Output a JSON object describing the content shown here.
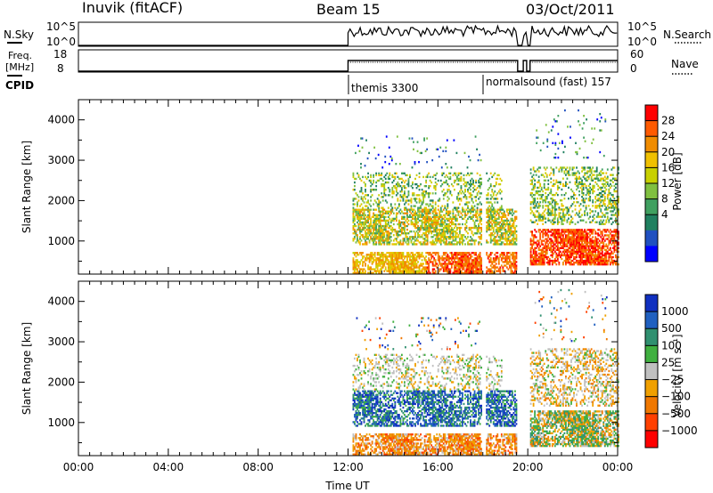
{
  "header": {
    "station": "Inuvik (fitACF)",
    "beam": "Beam 15",
    "date": "03/Oct/2011"
  },
  "strip_panels": {
    "nsky_label": "N.Sky",
    "nsky_ticks": [
      "10^5",
      "10^0"
    ],
    "nsearch_label": "N.Search",
    "nsearch_ticks": [
      "10^5",
      "10^0"
    ],
    "freq_label_line1": "Freq.",
    "freq_label_line2": "[MHz]",
    "freq_ticks": [
      "18",
      "8"
    ],
    "nave_label": "Nave",
    "nave_ticks": [
      "60",
      "0"
    ],
    "cpid_label": "CPID",
    "cpid_modes": [
      {
        "start_hour": 12.0,
        "label": "themis 3300"
      },
      {
        "start_hour": 18.0,
        "label": "normalsound (fast) 157"
      }
    ]
  },
  "chart_data": [
    {
      "type": "heatmap",
      "name": "power",
      "ylabel": "Slant Range [km]",
      "yticks": [
        1000,
        2000,
        3000,
        4000
      ],
      "ylim": [
        180,
        4500
      ],
      "xlim": [
        0,
        24
      ],
      "colorbar_label": "Power [dB]",
      "colorbar_ticks": [
        "28",
        "24",
        "20",
        "16",
        "12",
        "8",
        "4"
      ],
      "colorbar_colors": [
        "#ff0000",
        "#ff5a00",
        "#f08c00",
        "#f0c000",
        "#c8d000",
        "#80c040",
        "#40a060",
        "#208060",
        "#2050c0",
        "#0000ff"
      ]
    },
    {
      "type": "heatmap",
      "name": "velocity",
      "ylabel": "Slant Range [km]",
      "yticks": [
        1000,
        2000,
        3000,
        4000
      ],
      "ylim": [
        180,
        4500
      ],
      "xlim": [
        0,
        24
      ],
      "xlabel": "Time UT",
      "xticks": [
        "00:00",
        "04:00",
        "08:00",
        "12:00",
        "16:00",
        "20:00",
        "00:00"
      ],
      "xtick_hours": [
        0,
        4,
        8,
        12,
        16,
        20,
        24
      ],
      "colorbar_label": "Velocity [m s⁻¹]",
      "colorbar_ticks": [
        "1000",
        "500",
        "100",
        "25",
        "−25",
        "−100",
        "−500",
        "−1000"
      ],
      "colorbar_colors": [
        "#1030c0",
        "#2060c0",
        "#309070",
        "#40b040",
        "#c0c0c0",
        "#f0a000",
        "#f07800",
        "#ff4000",
        "#ff0000"
      ]
    }
  ]
}
